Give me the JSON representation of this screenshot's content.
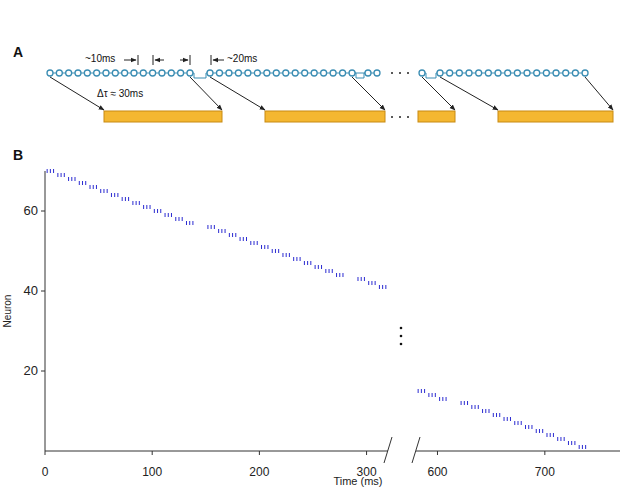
{
  "panel_a": {
    "label": "A",
    "interval_label": "~10ms",
    "gap_label": "~20ms",
    "delay_label": "Δτ ≈ 30ms"
  },
  "panel_b_label": "B",
  "chart_data": [
    {
      "type": "scatter",
      "marker": "tick",
      "color": "#2b2bd1",
      "x_label": "Time (ms)",
      "y_label": "Neuron",
      "xlim": [
        0,
        320
      ],
      "xticks": [
        0,
        100,
        200,
        300
      ],
      "ylim": [
        0,
        70
      ],
      "yticks": [
        20,
        40,
        60
      ],
      "x": [
        2,
        5,
        8,
        12,
        15,
        18,
        22,
        25,
        28,
        32,
        35,
        38,
        42,
        45,
        48,
        52,
        55,
        58,
        62,
        65,
        68,
        72,
        75,
        78,
        82,
        85,
        88,
        92,
        95,
        98,
        102,
        105,
        108,
        112,
        115,
        118,
        122,
        125,
        128,
        132,
        135,
        138,
        152,
        155,
        158,
        162,
        165,
        168,
        172,
        175,
        178,
        182,
        185,
        188,
        192,
        195,
        198,
        202,
        205,
        208,
        212,
        215,
        218,
        222,
        225,
        228,
        232,
        235,
        238,
        242,
        245,
        248,
        252,
        255,
        258,
        262,
        265,
        268,
        272,
        275,
        278,
        292,
        295,
        298,
        302,
        305,
        308,
        312,
        315,
        318
      ],
      "values": [
        70,
        70,
        70,
        69,
        69,
        69,
        68,
        68,
        68,
        67,
        67,
        67,
        66,
        66,
        66,
        65,
        65,
        65,
        64,
        64,
        64,
        63,
        63,
        63,
        62,
        62,
        62,
        61,
        61,
        61,
        60,
        60,
        60,
        59,
        59,
        59,
        58,
        58,
        58,
        57,
        57,
        57,
        56,
        56,
        56,
        55,
        55,
        55,
        54,
        54,
        54,
        53,
        53,
        53,
        52,
        52,
        52,
        51,
        51,
        51,
        50,
        50,
        50,
        49,
        49,
        49,
        48,
        48,
        48,
        47,
        47,
        47,
        46,
        46,
        46,
        45,
        45,
        45,
        44,
        44,
        44,
        43,
        43,
        43,
        42,
        42,
        42,
        41,
        41,
        41
      ]
    },
    {
      "type": "scatter",
      "marker": "tick",
      "color": "#2b2bd1",
      "tick_labels": "x",
      "xlim": [
        580,
        770
      ],
      "xticks": [
        600,
        700
      ],
      "ylim": [
        0,
        70
      ],
      "x": [
        582,
        585,
        588,
        592,
        595,
        598,
        602,
        605,
        608,
        622,
        625,
        628,
        632,
        635,
        638,
        642,
        645,
        648,
        652,
        655,
        658,
        662,
        665,
        668,
        672,
        675,
        678,
        682,
        685,
        688,
        692,
        695,
        698,
        702,
        705,
        708,
        712,
        715,
        718,
        722,
        725,
        728,
        732,
        735,
        738
      ],
      "values": [
        15,
        15,
        15,
        14,
        14,
        14,
        13,
        13,
        13,
        12,
        12,
        12,
        11,
        11,
        11,
        10,
        10,
        10,
        9,
        9,
        9,
        8,
        8,
        8,
        7,
        7,
        7,
        6,
        6,
        6,
        5,
        5,
        5,
        4,
        4,
        4,
        3,
        3,
        3,
        2,
        2,
        2,
        1,
        1,
        1
      ]
    }
  ]
}
